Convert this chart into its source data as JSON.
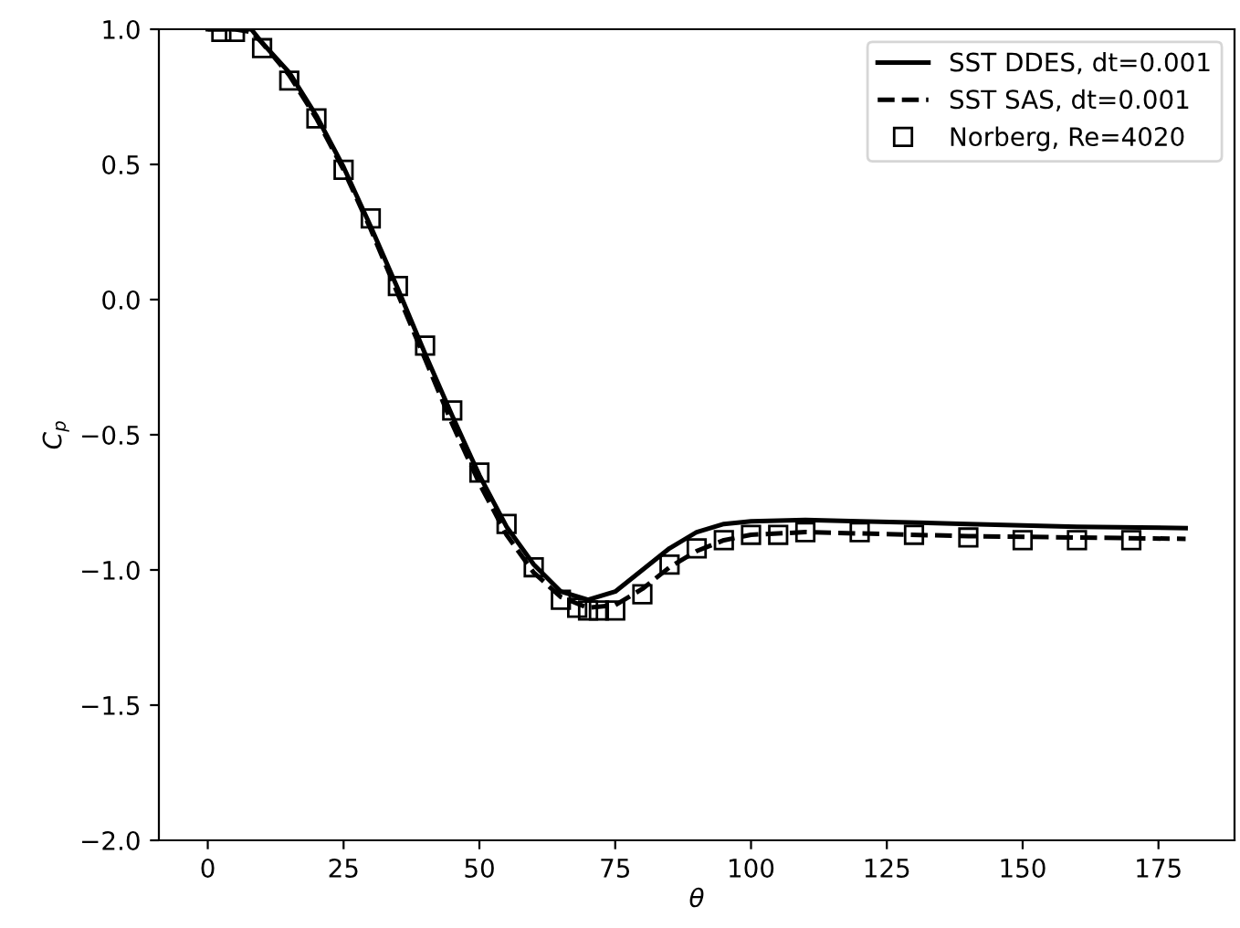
{
  "chart_data": {
    "type": "line",
    "xlabel": "θ",
    "ylabel": "C$_{p}$",
    "xlim": [
      -9,
      189
    ],
    "xticks": [
      0,
      25,
      50,
      75,
      100,
      125,
      150,
      175
    ],
    "ylim": [
      -2.0,
      1.0
    ],
    "yticks": [
      {
        "value": -2.0,
        "label": "−2.0"
      },
      {
        "value": -1.5,
        "label": "−1.5"
      },
      {
        "value": -1.0,
        "label": "−1.0"
      },
      {
        "value": -0.5,
        "label": "−0.5"
      },
      {
        "value": 0.0,
        "label": "0.0"
      },
      {
        "value": 0.5,
        "label": "0.5"
      },
      {
        "value": 1.0,
        "label": "1.0"
      }
    ],
    "grid": false,
    "legend": "top right",
    "series": [
      {
        "name": "SST DDES, dt=0.001",
        "color": "#000000",
        "line_style": "solid",
        "marker": "none",
        "x": [
          0,
          5,
          8,
          10,
          15,
          20,
          25,
          30,
          35,
          40,
          45,
          50,
          55,
          60,
          65,
          70,
          75,
          80,
          85,
          90,
          95,
          100,
          110,
          120,
          140,
          160,
          180
        ],
        "values": [
          1.0,
          1.0,
          1.0,
          0.95,
          0.84,
          0.68,
          0.49,
          0.27,
          0.04,
          -0.2,
          -0.43,
          -0.65,
          -0.84,
          -0.98,
          -1.08,
          -1.11,
          -1.08,
          -1.0,
          -0.92,
          -0.86,
          -0.83,
          -0.82,
          -0.815,
          -0.82,
          -0.83,
          -0.84,
          -0.845
        ]
      },
      {
        "name": "SST SAS, dt=0.001",
        "color": "#000000",
        "line_style": "dashed",
        "marker": "none",
        "x": [
          0,
          5,
          8,
          10,
          15,
          20,
          25,
          30,
          35,
          40,
          45,
          50,
          55,
          60,
          65,
          70,
          75,
          80,
          85,
          90,
          95,
          100,
          110,
          120,
          140,
          160,
          180
        ],
        "values": [
          1.0,
          1.0,
          0.99,
          0.95,
          0.83,
          0.67,
          0.48,
          0.26,
          0.02,
          -0.22,
          -0.46,
          -0.68,
          -0.87,
          -1.01,
          -1.1,
          -1.14,
          -1.13,
          -1.07,
          -0.99,
          -0.93,
          -0.89,
          -0.87,
          -0.86,
          -0.865,
          -0.875,
          -0.88,
          -0.885
        ]
      },
      {
        "name": "Norberg, Re=4020",
        "type": "scatter",
        "color": "#000000",
        "marker": "square",
        "x": [
          2.5,
          5,
          10,
          15,
          20,
          25,
          30,
          35,
          40,
          45,
          50,
          55,
          60,
          65,
          68,
          70,
          72,
          75,
          80,
          85,
          90,
          95,
          100,
          105,
          110,
          120,
          130,
          140,
          150,
          160,
          170
        ],
        "values": [
          0.99,
          0.99,
          0.93,
          0.81,
          0.67,
          0.48,
          0.3,
          0.05,
          -0.17,
          -0.41,
          -0.64,
          -0.83,
          -0.99,
          -1.11,
          -1.14,
          -1.15,
          -1.15,
          -1.15,
          -1.09,
          -0.98,
          -0.92,
          -0.89,
          -0.87,
          -0.87,
          -0.86,
          -0.86,
          -0.87,
          -0.88,
          -0.89,
          -0.89,
          -0.89
        ]
      }
    ]
  }
}
